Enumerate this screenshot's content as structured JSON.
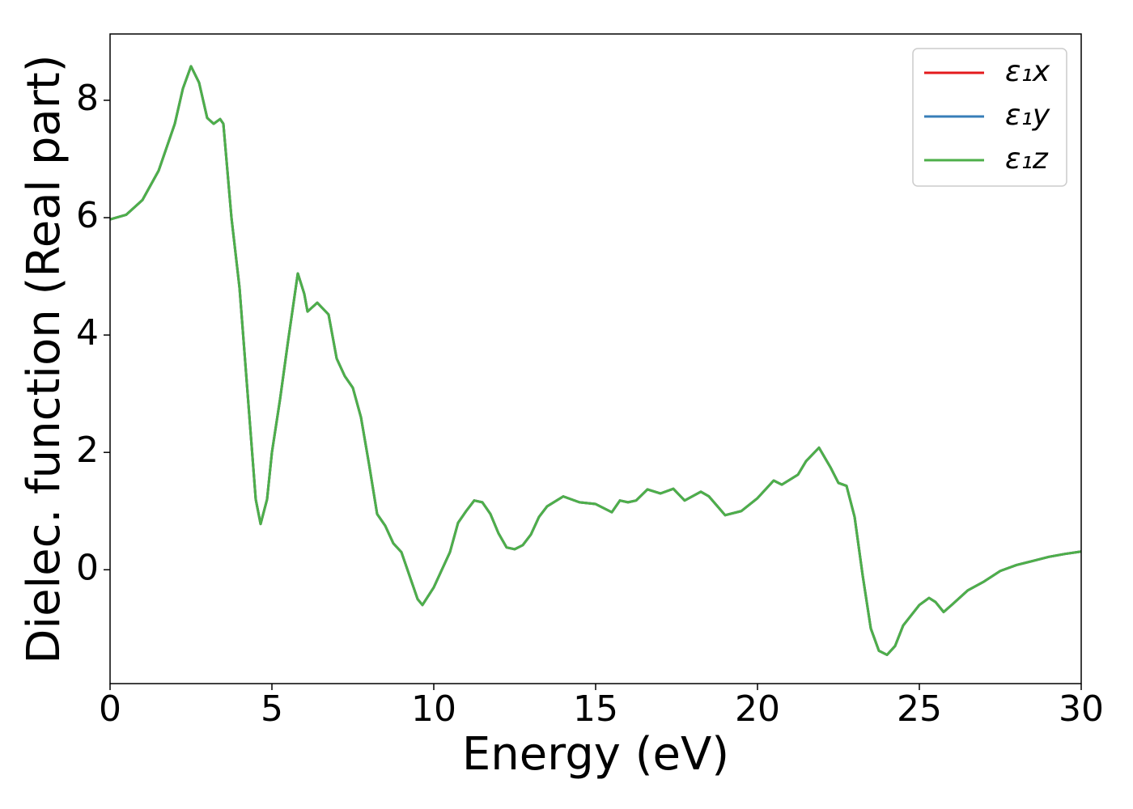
{
  "chart_data": {
    "type": "line",
    "xlabel": "Energy (eV)",
    "ylabel": "Dielec. function (Real part)",
    "x": [
      0,
      0.5,
      1,
      1.5,
      2,
      2.25,
      2.5,
      2.75,
      3,
      3.2,
      3.4,
      3.5,
      3.75,
      4,
      4.25,
      4.5,
      4.65,
      4.85,
      5,
      5.25,
      5.5,
      5.8,
      6,
      6.1,
      6.4,
      6.75,
      7,
      7.25,
      7.5,
      7.75,
      8,
      8.25,
      8.5,
      8.75,
      9,
      9.25,
      9.5,
      9.65,
      10,
      10.5,
      10.75,
      11,
      11.25,
      11.5,
      11.75,
      12,
      12.25,
      12.5,
      12.75,
      13,
      13.25,
      13.5,
      14,
      14.5,
      15,
      15.5,
      15.75,
      16,
      16.25,
      16.6,
      17,
      17.4,
      17.75,
      18.25,
      18.5,
      19,
      19.5,
      20,
      20.5,
      20.75,
      21.25,
      21.5,
      21.9,
      22.25,
      22.5,
      22.75,
      23,
      23.25,
      23.5,
      23.75,
      24,
      24.25,
      24.5,
      25,
      25.3,
      25.5,
      25.75,
      26,
      26.5,
      27,
      27.5,
      28,
      28.5,
      29,
      29.5,
      30
    ],
    "series": [
      {
        "name": "ε₁x",
        "color": "#e41a1c",
        "values": [
          5.97,
          6.05,
          6.3,
          6.8,
          7.6,
          8.2,
          8.58,
          8.3,
          7.7,
          7.6,
          7.68,
          7.6,
          6.0,
          4.8,
          3.0,
          1.2,
          0.78,
          1.2,
          2.0,
          2.9,
          3.9,
          5.05,
          4.7,
          4.4,
          4.55,
          4.35,
          3.6,
          3.3,
          3.1,
          2.6,
          1.8,
          0.95,
          0.75,
          0.45,
          0.3,
          -0.1,
          -0.5,
          -0.6,
          -0.3,
          0.3,
          0.8,
          1.0,
          1.18,
          1.15,
          0.95,
          0.62,
          0.38,
          0.35,
          0.42,
          0.6,
          0.9,
          1.08,
          1.25,
          1.15,
          1.12,
          0.98,
          1.18,
          1.15,
          1.18,
          1.37,
          1.3,
          1.38,
          1.18,
          1.33,
          1.25,
          0.93,
          1.0,
          1.22,
          1.52,
          1.45,
          1.62,
          1.85,
          2.08,
          1.75,
          1.48,
          1.43,
          0.9,
          -0.1,
          -1.0,
          -1.38,
          -1.45,
          -1.3,
          -0.95,
          -0.6,
          -0.48,
          -0.55,
          -0.72,
          -0.6,
          -0.35,
          -0.2,
          -0.02,
          0.08,
          0.15,
          0.22,
          0.27,
          0.31
        ]
      },
      {
        "name": "ε₁y",
        "color": "#377eb8",
        "values": [
          5.97,
          6.05,
          6.3,
          6.8,
          7.6,
          8.2,
          8.58,
          8.3,
          7.7,
          7.6,
          7.68,
          7.6,
          6.0,
          4.8,
          3.0,
          1.2,
          0.78,
          1.2,
          2.0,
          2.9,
          3.9,
          5.05,
          4.7,
          4.4,
          4.55,
          4.35,
          3.6,
          3.3,
          3.1,
          2.6,
          1.8,
          0.95,
          0.75,
          0.45,
          0.3,
          -0.1,
          -0.5,
          -0.6,
          -0.3,
          0.3,
          0.8,
          1.0,
          1.18,
          1.15,
          0.95,
          0.62,
          0.38,
          0.35,
          0.42,
          0.6,
          0.9,
          1.08,
          1.25,
          1.15,
          1.12,
          0.98,
          1.18,
          1.15,
          1.18,
          1.37,
          1.3,
          1.38,
          1.18,
          1.33,
          1.25,
          0.93,
          1.0,
          1.22,
          1.52,
          1.45,
          1.62,
          1.85,
          2.08,
          1.75,
          1.48,
          1.43,
          0.9,
          -0.1,
          -1.0,
          -1.38,
          -1.45,
          -1.3,
          -0.95,
          -0.6,
          -0.48,
          -0.55,
          -0.72,
          -0.6,
          -0.35,
          -0.2,
          -0.02,
          0.08,
          0.15,
          0.22,
          0.27,
          0.31
        ]
      },
      {
        "name": "ε₁z",
        "color": "#4daf4a",
        "values": [
          5.97,
          6.05,
          6.3,
          6.8,
          7.6,
          8.2,
          8.58,
          8.3,
          7.7,
          7.6,
          7.68,
          7.6,
          6.0,
          4.8,
          3.0,
          1.2,
          0.78,
          1.2,
          2.0,
          2.9,
          3.9,
          5.05,
          4.7,
          4.4,
          4.55,
          4.35,
          3.6,
          3.3,
          3.1,
          2.6,
          1.8,
          0.95,
          0.75,
          0.45,
          0.3,
          -0.1,
          -0.5,
          -0.6,
          -0.3,
          0.3,
          0.8,
          1.0,
          1.18,
          1.15,
          0.95,
          0.62,
          0.38,
          0.35,
          0.42,
          0.6,
          0.9,
          1.08,
          1.25,
          1.15,
          1.12,
          0.98,
          1.18,
          1.15,
          1.18,
          1.37,
          1.3,
          1.38,
          1.18,
          1.33,
          1.25,
          0.93,
          1.0,
          1.22,
          1.52,
          1.45,
          1.62,
          1.85,
          2.08,
          1.75,
          1.48,
          1.43,
          0.9,
          -0.1,
          -1.0,
          -1.38,
          -1.45,
          -1.3,
          -0.95,
          -0.6,
          -0.48,
          -0.55,
          -0.72,
          -0.6,
          -0.35,
          -0.2,
          -0.02,
          0.08,
          0.15,
          0.22,
          0.27,
          0.31
        ]
      }
    ],
    "xlim": [
      0,
      30
    ],
    "xticks": [
      0,
      5,
      10,
      15,
      20,
      25,
      30
    ],
    "ylim": [
      -1.94,
      9.13
    ],
    "yticks": [
      0,
      2,
      4,
      6,
      8
    ],
    "grid": false,
    "legend": "upper right"
  }
}
